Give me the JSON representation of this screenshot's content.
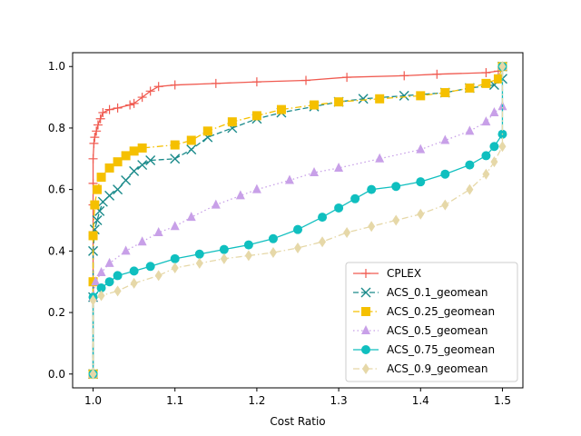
{
  "chart_data": {
    "type": "line",
    "title": "",
    "xlabel": "Cost Ratio",
    "ylabel": "",
    "xlim": [
      0.975,
      1.525
    ],
    "ylim": [
      -0.045,
      1.045
    ],
    "x_ticks": [
      "1.0",
      "1.1",
      "1.2",
      "1.3",
      "1.4",
      "1.5"
    ],
    "x_tick_values": [
      1.0,
      1.1,
      1.2,
      1.3,
      1.4,
      1.5
    ],
    "y_ticks": [
      "0.0",
      "0.2",
      "0.4",
      "0.6",
      "0.8",
      "1.0"
    ],
    "y_tick_values": [
      0.0,
      0.2,
      0.4,
      0.6,
      0.8,
      1.0
    ],
    "grid": false,
    "legend_position": "lower-right",
    "series": [
      {
        "name": "CPLEX",
        "color": "#f05a50",
        "marker": "plus",
        "linestyle": "solid",
        "points": [
          [
            1.0,
            0.0
          ],
          [
            1.0,
            0.25
          ],
          [
            1.0,
            0.45
          ],
          [
            1.0,
            0.55
          ],
          [
            1.0,
            0.62
          ],
          [
            1.0,
            0.7
          ],
          [
            1.001,
            0.75
          ],
          [
            1.002,
            0.77
          ],
          [
            1.004,
            0.79
          ],
          [
            1.006,
            0.81
          ],
          [
            1.009,
            0.83
          ],
          [
            1.012,
            0.85
          ],
          [
            1.02,
            0.86
          ],
          [
            1.03,
            0.865
          ],
          [
            1.045,
            0.875
          ],
          [
            1.05,
            0.88
          ],
          [
            1.06,
            0.9
          ],
          [
            1.07,
            0.92
          ],
          [
            1.08,
            0.935
          ],
          [
            1.1,
            0.94
          ],
          [
            1.15,
            0.945
          ],
          [
            1.2,
            0.95
          ],
          [
            1.26,
            0.955
          ],
          [
            1.31,
            0.965
          ],
          [
            1.38,
            0.97
          ],
          [
            1.42,
            0.975
          ],
          [
            1.48,
            0.98
          ],
          [
            1.495,
            0.985
          ],
          [
            1.5,
            1.0
          ]
        ]
      },
      {
        "name": "ACS_0.1_geomean",
        "color": "#1a8a8a",
        "marker": "x",
        "linestyle": "dashed",
        "points": [
          [
            1.0,
            0.0
          ],
          [
            1.0,
            0.25
          ],
          [
            1.0,
            0.4
          ],
          [
            1.002,
            0.47
          ],
          [
            1.005,
            0.5
          ],
          [
            1.008,
            0.53
          ],
          [
            1.012,
            0.56
          ],
          [
            1.02,
            0.58
          ],
          [
            1.03,
            0.6
          ],
          [
            1.04,
            0.63
          ],
          [
            1.05,
            0.66
          ],
          [
            1.06,
            0.68
          ],
          [
            1.07,
            0.695
          ],
          [
            1.1,
            0.7
          ],
          [
            1.12,
            0.73
          ],
          [
            1.14,
            0.77
          ],
          [
            1.17,
            0.8
          ],
          [
            1.2,
            0.83
          ],
          [
            1.23,
            0.85
          ],
          [
            1.27,
            0.87
          ],
          [
            1.3,
            0.885
          ],
          [
            1.33,
            0.895
          ],
          [
            1.38,
            0.905
          ],
          [
            1.43,
            0.915
          ],
          [
            1.46,
            0.93
          ],
          [
            1.49,
            0.94
          ],
          [
            1.5,
            0.96
          ],
          [
            1.5,
            1.0
          ]
        ]
      },
      {
        "name": "ACS_0.25_geomean",
        "color": "#f5c000",
        "marker": "square",
        "linestyle": "dashdot",
        "points": [
          [
            1.0,
            0.0
          ],
          [
            1.0,
            0.3
          ],
          [
            1.0,
            0.45
          ],
          [
            1.002,
            0.55
          ],
          [
            1.005,
            0.6
          ],
          [
            1.01,
            0.64
          ],
          [
            1.02,
            0.67
          ],
          [
            1.03,
            0.69
          ],
          [
            1.04,
            0.71
          ],
          [
            1.05,
            0.725
          ],
          [
            1.06,
            0.735
          ],
          [
            1.1,
            0.745
          ],
          [
            1.12,
            0.76
          ],
          [
            1.14,
            0.79
          ],
          [
            1.17,
            0.82
          ],
          [
            1.2,
            0.84
          ],
          [
            1.23,
            0.86
          ],
          [
            1.27,
            0.875
          ],
          [
            1.3,
            0.885
          ],
          [
            1.35,
            0.895
          ],
          [
            1.4,
            0.905
          ],
          [
            1.43,
            0.915
          ],
          [
            1.46,
            0.93
          ],
          [
            1.48,
            0.945
          ],
          [
            1.495,
            0.96
          ],
          [
            1.5,
            1.0
          ]
        ]
      },
      {
        "name": "ACS_0.5_geomean",
        "color": "#c8a0e8",
        "marker": "triangle",
        "linestyle": "dotted",
        "points": [
          [
            1.0,
            0.0
          ],
          [
            1.0,
            0.25
          ],
          [
            1.003,
            0.3
          ],
          [
            1.01,
            0.33
          ],
          [
            1.02,
            0.36
          ],
          [
            1.04,
            0.4
          ],
          [
            1.06,
            0.43
          ],
          [
            1.08,
            0.46
          ],
          [
            1.1,
            0.48
          ],
          [
            1.12,
            0.51
          ],
          [
            1.15,
            0.55
          ],
          [
            1.18,
            0.58
          ],
          [
            1.2,
            0.6
          ],
          [
            1.24,
            0.63
          ],
          [
            1.27,
            0.655
          ],
          [
            1.3,
            0.67
          ],
          [
            1.35,
            0.7
          ],
          [
            1.4,
            0.73
          ],
          [
            1.43,
            0.76
          ],
          [
            1.46,
            0.79
          ],
          [
            1.48,
            0.82
          ],
          [
            1.49,
            0.85
          ],
          [
            1.5,
            0.87
          ],
          [
            1.5,
            1.0
          ]
        ]
      },
      {
        "name": "ACS_0.75_geomean",
        "color": "#10bfbf",
        "marker": "circle",
        "linestyle": "solid",
        "points": [
          [
            1.0,
            0.0
          ],
          [
            1.0,
            0.25
          ],
          [
            1.01,
            0.28
          ],
          [
            1.02,
            0.3
          ],
          [
            1.03,
            0.32
          ],
          [
            1.05,
            0.335
          ],
          [
            1.07,
            0.35
          ],
          [
            1.1,
            0.375
          ],
          [
            1.13,
            0.39
          ],
          [
            1.16,
            0.405
          ],
          [
            1.19,
            0.42
          ],
          [
            1.22,
            0.44
          ],
          [
            1.25,
            0.47
          ],
          [
            1.28,
            0.51
          ],
          [
            1.3,
            0.54
          ],
          [
            1.32,
            0.57
          ],
          [
            1.34,
            0.6
          ],
          [
            1.37,
            0.61
          ],
          [
            1.4,
            0.625
          ],
          [
            1.43,
            0.65
          ],
          [
            1.46,
            0.68
          ],
          [
            1.48,
            0.71
          ],
          [
            1.49,
            0.74
          ],
          [
            1.5,
            0.78
          ],
          [
            1.5,
            1.0
          ]
        ]
      },
      {
        "name": "ACS_0.9_geomean",
        "color": "#e6d8a8",
        "marker": "diamond",
        "linestyle": "dashdot",
        "points": [
          [
            1.0,
            0.0
          ],
          [
            1.0,
            0.24
          ],
          [
            1.01,
            0.255
          ],
          [
            1.03,
            0.27
          ],
          [
            1.05,
            0.295
          ],
          [
            1.08,
            0.32
          ],
          [
            1.1,
            0.345
          ],
          [
            1.13,
            0.36
          ],
          [
            1.16,
            0.375
          ],
          [
            1.19,
            0.385
          ],
          [
            1.22,
            0.395
          ],
          [
            1.25,
            0.41
          ],
          [
            1.28,
            0.43
          ],
          [
            1.31,
            0.46
          ],
          [
            1.34,
            0.48
          ],
          [
            1.37,
            0.5
          ],
          [
            1.4,
            0.52
          ],
          [
            1.43,
            0.55
          ],
          [
            1.46,
            0.6
          ],
          [
            1.48,
            0.65
          ],
          [
            1.49,
            0.69
          ],
          [
            1.5,
            0.74
          ],
          [
            1.5,
            1.0
          ]
        ]
      }
    ]
  }
}
